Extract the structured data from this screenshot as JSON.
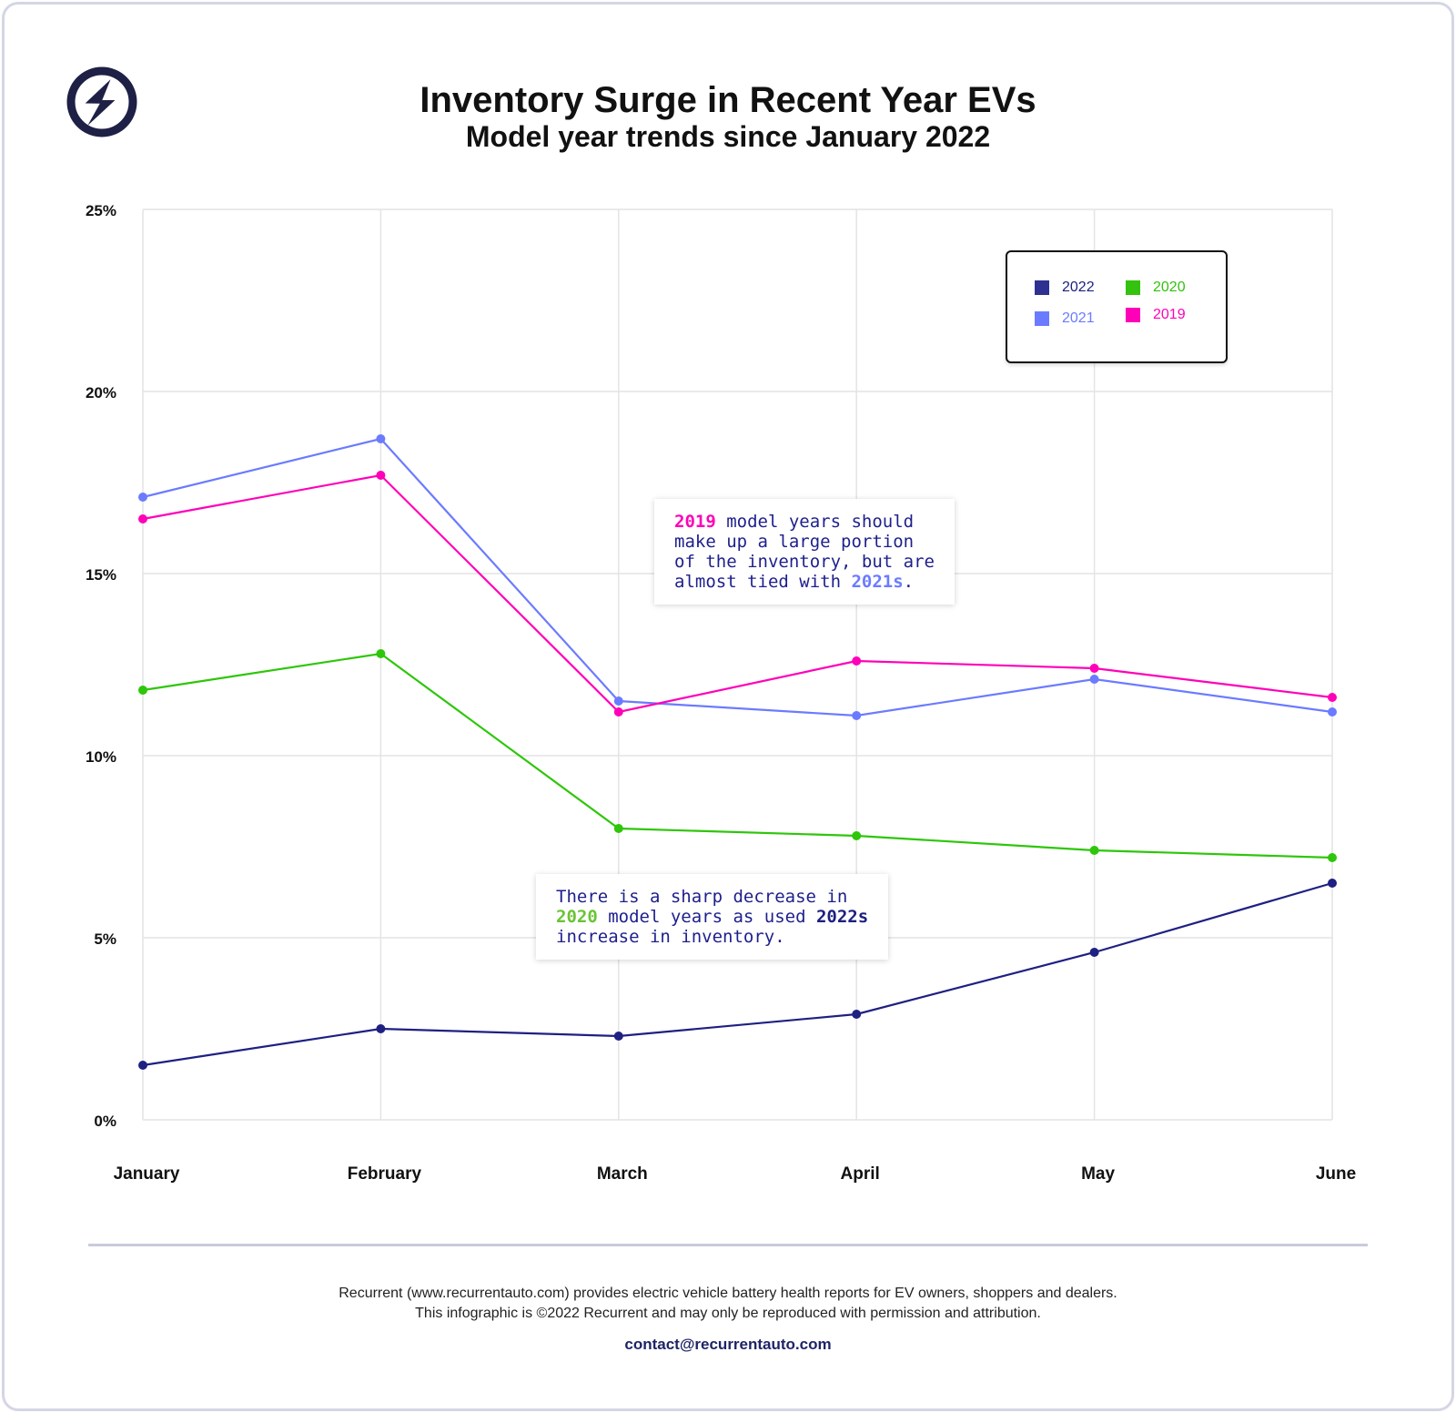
{
  "header": {
    "logo_icon": "lightning-bolt-circle-icon",
    "title": "Inventory Surge in Recent Year EVs",
    "subtitle": "Model year trends since January 2022"
  },
  "legend": [
    {
      "label": "2022",
      "color": "#2e3192"
    },
    {
      "label": "2020",
      "color": "#33c20e"
    },
    {
      "label": "2021",
      "color": "#6b7bff"
    },
    {
      "label": "2019",
      "color": "#ff00b8"
    }
  ],
  "annotations": {
    "note1": {
      "hl1": "2019",
      "text1": " model years should\nmake up a large portion\nof the inventory, but are\nalmost tied with ",
      "hl2": "2021s",
      "text2": "."
    },
    "note2": {
      "text0": "There is a sharp decrease in\n",
      "hl1": "2020",
      "text1": " model years as used ",
      "hl2": "2022s",
      "text2": "\nincrease in inventory."
    }
  },
  "footer": {
    "line1": "Recurrent (www.recurrentauto.com) provides electric vehicle battery health reports for EV owners, shoppers and dealers.",
    "line2": "This infographic is ©2022 Recurrent and may only be reproduced with permission and attribution.",
    "email": "contact@recurrentauto.com"
  },
  "chart_data": {
    "type": "line",
    "title": "Inventory Surge in Recent Year EVs",
    "subtitle": "Model year trends since January 2022",
    "xlabel": "",
    "ylabel": "",
    "categories": [
      "January",
      "February",
      "March",
      "April",
      "May",
      "June"
    ],
    "yticks": [
      "0%",
      "5%",
      "10%",
      "15%",
      "20%",
      "25%"
    ],
    "ylim": [
      0,
      25
    ],
    "grid": true,
    "legend_position": "top-right",
    "series": [
      {
        "name": "2022",
        "color": "#1e2082",
        "values": [
          1.5,
          2.5,
          2.3,
          2.9,
          4.6,
          6.5
        ]
      },
      {
        "name": "2021",
        "color": "#6b7bff",
        "values": [
          17.1,
          18.7,
          11.5,
          11.1,
          12.1,
          11.2
        ]
      },
      {
        "name": "2020",
        "color": "#2ec60a",
        "values": [
          11.8,
          12.8,
          8.0,
          7.8,
          7.4,
          7.2
        ]
      },
      {
        "name": "2019",
        "color": "#ff00b8",
        "values": [
          16.5,
          17.7,
          11.2,
          12.6,
          12.4,
          11.6
        ]
      }
    ]
  }
}
